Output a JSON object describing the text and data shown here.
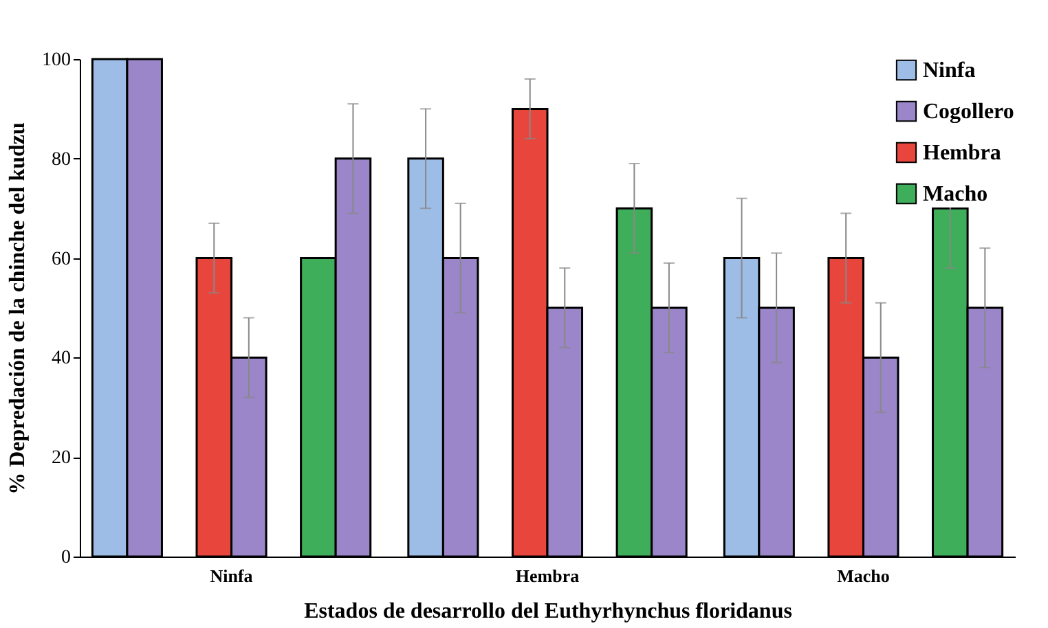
{
  "chart_data": {
    "type": "bar",
    "xlabel": "Estados de desarrollo del Euthyrhynchus floridanus",
    "ylabel": "% Depredación de la chinche del kudzu",
    "categories": [
      "Ninfa",
      "Hembra",
      "Macho"
    ],
    "series": [
      {
        "name": "Ninfa",
        "color": "#9dbde6",
        "values": [
          100,
          80,
          60
        ],
        "errors": [
          null,
          10,
          12
        ]
      },
      {
        "name": "Cogollero",
        "color": "#9a86c8",
        "values": [
          100,
          60,
          50
        ],
        "errors": [
          null,
          11,
          11
        ]
      },
      {
        "name": "Hembra",
        "color": "#e8463c",
        "values": [
          60,
          90,
          60
        ],
        "errors": [
          7,
          6,
          9
        ]
      },
      {
        "color": "#9a86c8",
        "values": [
          40,
          50,
          40
        ],
        "errors": [
          8,
          8,
          11
        ]
      },
      {
        "name": "Macho",
        "color": "#3fae5a",
        "values": [
          60,
          70,
          70
        ],
        "errors": [
          null,
          9,
          12
        ]
      },
      {
        "color": "#9a86c8",
        "values": [
          80,
          50,
          50
        ],
        "errors": [
          11,
          9,
          12
        ]
      }
    ],
    "ylim": [
      0,
      100
    ],
    "yticks": [
      0,
      20,
      40,
      60,
      80,
      100
    ],
    "grid": false,
    "legend": "top right"
  }
}
